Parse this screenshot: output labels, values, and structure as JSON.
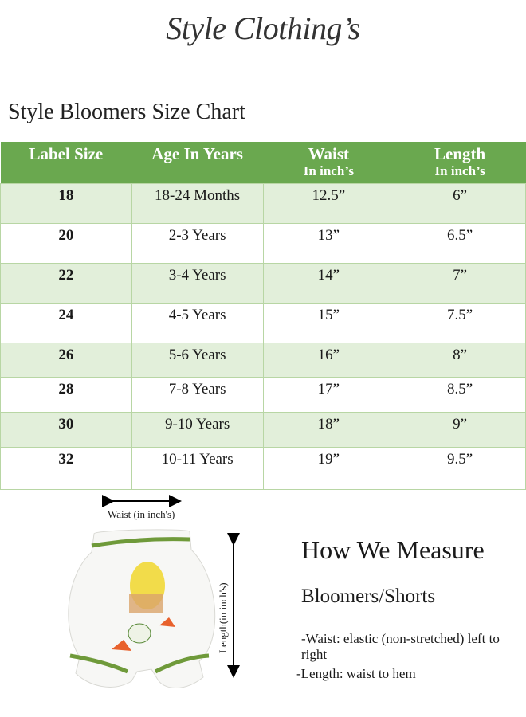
{
  "brand": "Style Clothing’s",
  "chart_title": "Style Bloomers Size Chart",
  "table": {
    "headers": [
      {
        "label": "Label Size",
        "sub": ""
      },
      {
        "label": "Age In Years",
        "sub": ""
      },
      {
        "label": "Waist",
        "sub": "In inch’s"
      },
      {
        "label": "Length",
        "sub": "In inch’s"
      }
    ],
    "rows": [
      [
        "18",
        "18-24 Months",
        "12.5”",
        "6”"
      ],
      [
        "20",
        "2-3 Years",
        "13”",
        "6.5”"
      ],
      [
        "22",
        "3-4 Years",
        "14”",
        "7”"
      ],
      [
        "24",
        "4-5 Years",
        "15”",
        "7.5”"
      ],
      [
        "26",
        "5-6 Years",
        "16”",
        "8”"
      ],
      [
        "28",
        "7-8 Years",
        "17”",
        "8.5”"
      ],
      [
        "30",
        "9-10 Years",
        "18”",
        "9”"
      ],
      [
        "32",
        "10-11 Years",
        "19”",
        "9.5”"
      ]
    ]
  },
  "figure": {
    "waist_label": "Waist (in inch's)",
    "length_label": "Length(in inch's)"
  },
  "measure": {
    "title": "How We Measure",
    "subtitle": "Bloomers/Shorts",
    "notes": [
      "-Waist: elastic (non-stretched) left to right",
      "-Length: waist to hem"
    ]
  },
  "colors": {
    "header": "#6aa84f",
    "alt_row": "#e2efda",
    "border": "#b8d6a4"
  }
}
